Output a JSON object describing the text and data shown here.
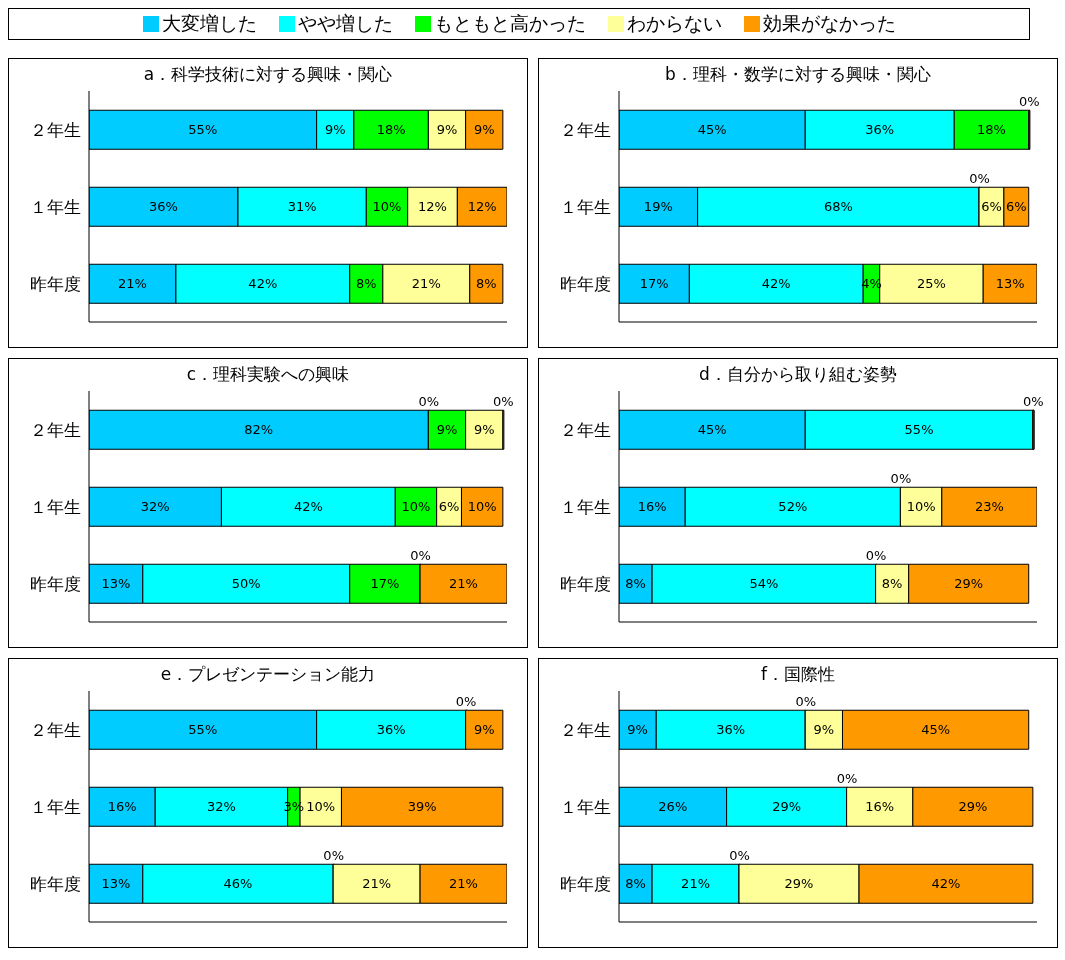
{
  "chart_data": [
    {
      "type": "bar",
      "orientation": "horizontal",
      "stacked": true,
      "title": "a．科学技術に対する興味・関心",
      "categories": [
        "２年生",
        "１年生",
        "昨年度"
      ],
      "xlim": [
        0,
        101
      ],
      "tick_labels": "y",
      "legend": "top",
      "series": [
        {
          "name": "大変増した",
          "color": "#00ccff",
          "values": [
            55,
            36,
            21
          ],
          "value_labels": [
            "55%",
            "36%",
            "21%"
          ]
        },
        {
          "name": "やや増した",
          "color": "#00ffff",
          "values": [
            9,
            31,
            42
          ],
          "value_labels": [
            "9%",
            "31%",
            "42%"
          ]
        },
        {
          "name": "もともと高かった",
          "color": "#00ff00",
          "values": [
            18,
            10,
            8
          ],
          "value_labels": [
            "18%",
            "10%",
            "8%"
          ]
        },
        {
          "name": "わからない",
          "color": "#ffff99",
          "values": [
            9,
            12,
            21
          ],
          "value_labels": [
            "9%",
            "12%",
            "21%"
          ]
        },
        {
          "name": "効果がなかった",
          "color": "#ff9900",
          "values": [
            9,
            12,
            8
          ],
          "value_labels": [
            "9%",
            "12%",
            "8%"
          ]
        }
      ]
    },
    {
      "type": "bar",
      "orientation": "horizontal",
      "stacked": true,
      "title": "b．理科・数学に対する興味・関心",
      "categories": [
        "２年生",
        "１年生",
        "昨年度"
      ],
      "xlim": [
        0,
        101
      ],
      "tick_labels": "y",
      "series": [
        {
          "color": "#00ccff",
          "values": [
            45,
            19,
            17
          ],
          "value_labels": [
            "45%",
            "19%",
            "17%"
          ]
        },
        {
          "color": "#00ffff",
          "values": [
            36,
            68,
            42
          ],
          "value_labels": [
            "36%",
            "68%",
            "42%"
          ]
        },
        {
          "color": "#00ff00",
          "values": [
            18,
            0,
            4
          ],
          "value_labels": [
            "18%",
            "0%",
            "4%"
          ]
        },
        {
          "color": "#ffff99",
          "values": [
            0,
            6,
            25
          ],
          "value_labels": [
            "0%",
            "6%",
            "25%"
          ]
        },
        {
          "color": "#ff9900",
          "values": [
            0,
            6,
            13
          ],
          "value_labels": [
            null,
            "6%",
            "13%"
          ]
        }
      ]
    },
    {
      "type": "bar",
      "orientation": "horizontal",
      "stacked": true,
      "title": "c．理科実験への興味",
      "categories": [
        "２年生",
        "１年生",
        "昨年度"
      ],
      "xlim": [
        0,
        101
      ],
      "tick_labels": "y",
      "series": [
        {
          "color": "#00ccff",
          "values": [
            82,
            32,
            13
          ],
          "value_labels": [
            "82%",
            "32%",
            "13%"
          ]
        },
        {
          "color": "#00ffff",
          "values": [
            0,
            42,
            50
          ],
          "value_labels": [
            "0%",
            "42%",
            "50%"
          ]
        },
        {
          "color": "#00ff00",
          "values": [
            9,
            10,
            17
          ],
          "value_labels": [
            "9%",
            "10%",
            "17%"
          ]
        },
        {
          "color": "#ffff99",
          "values": [
            9,
            6,
            0
          ],
          "value_labels": [
            "9%",
            "6%",
            "0%"
          ]
        },
        {
          "color": "#ff9900",
          "values": [
            0,
            10,
            21
          ],
          "value_labels": [
            "0%",
            "10%",
            "21%"
          ]
        }
      ]
    },
    {
      "type": "bar",
      "orientation": "horizontal",
      "stacked": true,
      "title": "d．自分から取り組む姿勢",
      "categories": [
        "２年生",
        "１年生",
        "昨年度"
      ],
      "xlim": [
        0,
        101
      ],
      "tick_labels": "y",
      "series": [
        {
          "color": "#00ccff",
          "values": [
            45,
            16,
            8
          ],
          "value_labels": [
            "45%",
            "16%",
            "8%"
          ]
        },
        {
          "color": "#00ffff",
          "values": [
            55,
            52,
            54
          ],
          "value_labels": [
            "55%",
            "52%",
            "54%"
          ]
        },
        {
          "color": "#00ff00",
          "values": [
            0,
            0,
            0
          ],
          "value_labels": [
            "0%",
            "0%",
            "0%"
          ]
        },
        {
          "color": "#ffff99",
          "values": [
            0,
            10,
            8
          ],
          "value_labels": [
            null,
            "10%",
            "8%"
          ]
        },
        {
          "color": "#ff9900",
          "values": [
            0,
            23,
            29
          ],
          "value_labels": [
            null,
            "23%",
            "29%"
          ]
        }
      ]
    },
    {
      "type": "bar",
      "orientation": "horizontal",
      "stacked": true,
      "title": "e．プレゼンテーション能力",
      "categories": [
        "２年生",
        "１年生",
        "昨年度"
      ],
      "xlim": [
        0,
        101
      ],
      "tick_labels": "y",
      "series": [
        {
          "color": "#00ccff",
          "values": [
            55,
            16,
            13
          ],
          "value_labels": [
            "55%",
            "16%",
            "13%"
          ]
        },
        {
          "color": "#00ffff",
          "values": [
            36,
            32,
            46
          ],
          "value_labels": [
            "36%",
            "32%",
            "46%"
          ]
        },
        {
          "color": "#00ff00",
          "values": [
            0,
            3,
            0
          ],
          "value_labels": [
            "0%",
            "3%",
            "0%"
          ]
        },
        {
          "color": "#ffff99",
          "values": [
            0,
            10,
            21
          ],
          "value_labels": [
            null,
            "10%",
            "21%"
          ]
        },
        {
          "color": "#ff9900",
          "values": [
            9,
            39,
            21
          ],
          "value_labels": [
            "9%",
            "39%",
            "21%"
          ]
        }
      ]
    },
    {
      "type": "bar",
      "orientation": "horizontal",
      "stacked": true,
      "title": "f．国際性",
      "categories": [
        "２年生",
        "１年生",
        "昨年度"
      ],
      "xlim": [
        0,
        101
      ],
      "tick_labels": "y",
      "series": [
        {
          "color": "#00ccff",
          "values": [
            9,
            26,
            8
          ],
          "value_labels": [
            "9%",
            "26%",
            "8%"
          ]
        },
        {
          "color": "#00ffff",
          "values": [
            36,
            29,
            21
          ],
          "value_labels": [
            "36%",
            "29%",
            "21%"
          ]
        },
        {
          "color": "#00ff00",
          "values": [
            0,
            0,
            0
          ],
          "value_labels": [
            "0%",
            "0%",
            "0%"
          ]
        },
        {
          "color": "#ffff99",
          "values": [
            9,
            16,
            29
          ],
          "value_labels": [
            "9%",
            "16%",
            "29%"
          ]
        },
        {
          "color": "#ff9900",
          "values": [
            45,
            29,
            42
          ],
          "value_labels": [
            "45%",
            "29%",
            "42%"
          ]
        }
      ]
    }
  ]
}
